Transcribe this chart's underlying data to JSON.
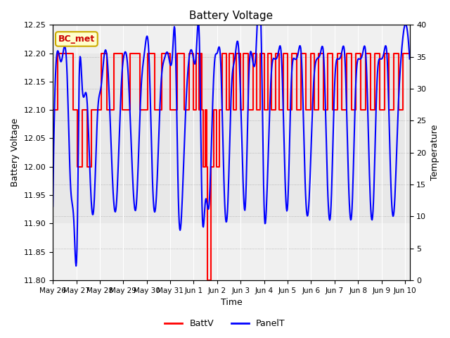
{
  "title": "Battery Voltage",
  "xlabel": "Time",
  "ylabel_left": "Battery Voltage",
  "ylabel_right": "Temperature",
  "annotation": "BC_met",
  "ylim_left": [
    11.8,
    12.25
  ],
  "ylim_right": [
    0,
    40
  ],
  "figsize": [
    6.4,
    4.8
  ],
  "dpi": 100,
  "outer_bg": "#f0f0f0",
  "inner_bg_low": 11.9,
  "inner_bg_high": 12.2,
  "inner_bg_color": "#e8e8e8",
  "xtick_labels": [
    "May 26",
    "May 27",
    "May 28",
    "May 29",
    "May 30",
    "May 31",
    "Jun 1",
    "Jun 2",
    "Jun 3",
    "Jun 4",
    "Jun 5",
    "Jun 6",
    "Jun 7",
    "Jun 8",
    "Jun 9",
    "Jun 10"
  ],
  "xtick_positions": [
    0,
    1,
    2,
    3,
    4,
    5,
    6,
    7,
    8,
    9,
    10,
    11,
    12,
    13,
    14,
    15
  ],
  "yticks_left": [
    11.8,
    11.85,
    11.9,
    11.95,
    12.0,
    12.05,
    12.1,
    12.15,
    12.2,
    12.25
  ],
  "yticks_right": [
    0,
    5,
    10,
    15,
    20,
    25,
    30,
    35,
    40
  ],
  "battv_steps": [
    [
      0.0,
      12.1
    ],
    [
      0.22,
      12.2
    ],
    [
      0.85,
      12.1
    ],
    [
      1.05,
      12.0
    ],
    [
      1.25,
      12.1
    ],
    [
      1.45,
      12.0
    ],
    [
      1.65,
      12.1
    ],
    [
      2.05,
      12.2
    ],
    [
      2.3,
      12.1
    ],
    [
      2.6,
      12.2
    ],
    [
      2.95,
      12.1
    ],
    [
      3.3,
      12.2
    ],
    [
      3.7,
      12.1
    ],
    [
      4.05,
      12.2
    ],
    [
      4.35,
      12.1
    ],
    [
      4.65,
      12.2
    ],
    [
      5.0,
      12.1
    ],
    [
      5.3,
      12.2
    ],
    [
      5.6,
      12.1
    ],
    [
      5.82,
      12.2
    ],
    [
      6.0,
      12.1
    ],
    [
      6.12,
      12.2
    ],
    [
      6.22,
      12.1
    ],
    [
      6.3,
      12.2
    ],
    [
      6.35,
      12.1
    ],
    [
      6.4,
      12.0
    ],
    [
      6.5,
      12.1
    ],
    [
      6.55,
      12.0
    ],
    [
      6.6,
      11.8
    ],
    [
      6.75,
      12.0
    ],
    [
      6.85,
      12.1
    ],
    [
      6.98,
      12.0
    ],
    [
      7.08,
      12.1
    ],
    [
      7.22,
      12.2
    ],
    [
      7.38,
      12.1
    ],
    [
      7.52,
      12.2
    ],
    [
      7.68,
      12.1
    ],
    [
      7.82,
      12.2
    ],
    [
      7.98,
      12.1
    ],
    [
      8.12,
      12.2
    ],
    [
      8.32,
      12.1
    ],
    [
      8.52,
      12.2
    ],
    [
      8.68,
      12.1
    ],
    [
      8.82,
      12.2
    ],
    [
      9.0,
      12.1
    ],
    [
      9.15,
      12.2
    ],
    [
      9.32,
      12.1
    ],
    [
      9.5,
      12.2
    ],
    [
      9.65,
      12.1
    ],
    [
      9.82,
      12.2
    ],
    [
      10.0,
      12.1
    ],
    [
      10.18,
      12.2
    ],
    [
      10.38,
      12.1
    ],
    [
      10.58,
      12.2
    ],
    [
      10.78,
      12.1
    ],
    [
      10.98,
      12.2
    ],
    [
      11.15,
      12.1
    ],
    [
      11.32,
      12.2
    ],
    [
      11.52,
      12.1
    ],
    [
      11.72,
      12.2
    ],
    [
      11.92,
      12.1
    ],
    [
      12.12,
      12.2
    ],
    [
      12.32,
      12.1
    ],
    [
      12.52,
      12.2
    ],
    [
      12.72,
      12.1
    ],
    [
      12.92,
      12.2
    ],
    [
      13.12,
      12.1
    ],
    [
      13.32,
      12.2
    ],
    [
      13.52,
      12.1
    ],
    [
      13.72,
      12.2
    ],
    [
      13.92,
      12.1
    ],
    [
      14.12,
      12.2
    ],
    [
      14.32,
      12.1
    ],
    [
      14.52,
      12.2
    ],
    [
      14.72,
      12.1
    ],
    [
      14.92,
      12.2
    ],
    [
      15.2,
      12.2
    ]
  ],
  "panelt_keypoints": [
    [
      0.0,
      11.93
    ],
    [
      0.15,
      12.19
    ],
    [
      0.35,
      12.185
    ],
    [
      0.6,
      12.17
    ],
    [
      0.75,
      11.97
    ],
    [
      0.9,
      11.9
    ],
    [
      1.05,
      11.91
    ],
    [
      1.1,
      12.1
    ],
    [
      1.25,
      12.14
    ],
    [
      1.45,
      12.12
    ],
    [
      1.6,
      11.97
    ],
    [
      1.75,
      11.93
    ],
    [
      1.9,
      12.09
    ],
    [
      2.05,
      12.14
    ],
    [
      2.2,
      12.2
    ],
    [
      2.35,
      12.17
    ],
    [
      2.55,
      11.97
    ],
    [
      2.7,
      11.93
    ],
    [
      2.9,
      12.13
    ],
    [
      3.05,
      12.2
    ],
    [
      3.2,
      12.17
    ],
    [
      3.4,
      11.98
    ],
    [
      3.55,
      11.93
    ],
    [
      3.75,
      12.13
    ],
    [
      3.9,
      12.2
    ],
    [
      4.1,
      12.19
    ],
    [
      4.25,
      11.97
    ],
    [
      4.4,
      11.94
    ],
    [
      4.6,
      12.14
    ],
    [
      4.75,
      12.19
    ],
    [
      4.9,
      12.2
    ],
    [
      5.1,
      12.2
    ],
    [
      5.2,
      12.24
    ],
    [
      5.35,
      11.94
    ],
    [
      5.5,
      11.93
    ],
    [
      5.65,
      12.09
    ],
    [
      5.8,
      12.19
    ],
    [
      5.95,
      12.2
    ],
    [
      6.1,
      12.195
    ],
    [
      6.25,
      12.21
    ],
    [
      6.35,
      11.94
    ],
    [
      6.5,
      11.94
    ],
    [
      6.65,
      11.93
    ],
    [
      6.8,
      12.1
    ],
    [
      6.9,
      12.19
    ],
    [
      7.0,
      12.2
    ],
    [
      7.15,
      12.185
    ],
    [
      7.3,
      11.96
    ],
    [
      7.45,
      11.93
    ],
    [
      7.6,
      12.13
    ],
    [
      7.75,
      12.19
    ],
    [
      7.9,
      12.215
    ],
    [
      8.05,
      12.05
    ],
    [
      8.2,
      11.93
    ],
    [
      8.35,
      12.16
    ],
    [
      8.5,
      12.19
    ],
    [
      8.65,
      12.2
    ],
    [
      8.8,
      12.31
    ],
    [
      8.9,
      12.18
    ],
    [
      9.0,
      11.93
    ],
    [
      9.1,
      11.93
    ],
    [
      9.3,
      12.16
    ],
    [
      9.45,
      12.19
    ],
    [
      9.6,
      12.2
    ],
    [
      9.75,
      12.185
    ],
    [
      9.9,
      11.97
    ],
    [
      10.0,
      11.93
    ],
    [
      10.15,
      12.14
    ],
    [
      10.3,
      12.19
    ],
    [
      10.45,
      12.2
    ],
    [
      10.6,
      12.185
    ],
    [
      10.75,
      11.97
    ],
    [
      10.9,
      11.93
    ],
    [
      11.1,
      12.14
    ],
    [
      11.25,
      12.19
    ],
    [
      11.4,
      12.2
    ],
    [
      11.55,
      12.185
    ],
    [
      11.7,
      11.97
    ],
    [
      11.85,
      11.93
    ],
    [
      12.0,
      12.14
    ],
    [
      12.15,
      12.19
    ],
    [
      12.3,
      12.2
    ],
    [
      12.45,
      12.185
    ],
    [
      12.6,
      11.97
    ],
    [
      12.75,
      11.93
    ],
    [
      12.9,
      12.14
    ],
    [
      13.05,
      12.19
    ],
    [
      13.2,
      12.2
    ],
    [
      13.35,
      12.185
    ],
    [
      13.5,
      11.97
    ],
    [
      13.65,
      11.93
    ],
    [
      13.8,
      12.14
    ],
    [
      13.95,
      12.19
    ],
    [
      14.1,
      12.2
    ],
    [
      14.25,
      12.185
    ],
    [
      14.4,
      11.97
    ],
    [
      14.55,
      11.93
    ],
    [
      14.7,
      12.09
    ],
    [
      14.85,
      12.2
    ],
    [
      15.0,
      12.25
    ],
    [
      15.1,
      12.24
    ],
    [
      15.2,
      12.19
    ]
  ]
}
